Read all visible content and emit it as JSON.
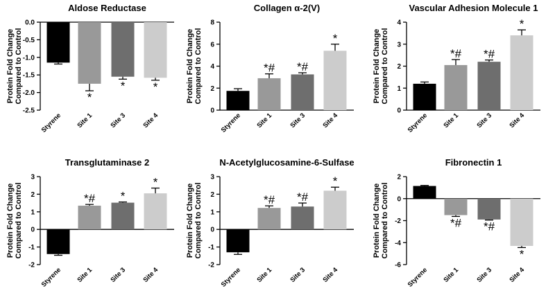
{
  "figure": {
    "background": "#ffffff"
  },
  "bar_colors": [
    "#000000",
    "#999999",
    "#6e6e6e",
    "#cccccc"
  ],
  "chart_data": [
    {
      "type": "bar",
      "title": "Aldose Reductase",
      "ylabel": "Protein Fold Change Compared to Control",
      "categories": [
        "Styrene",
        "Site 1",
        "Site 3",
        "Site 4"
      ],
      "values": [
        -1.15,
        -1.75,
        -1.55,
        -1.58
      ],
      "errors": [
        0.04,
        0.2,
        0.07,
        0.07
      ],
      "annotations": [
        "",
        "*",
        "*",
        "*"
      ],
      "ylim": [
        -2.5,
        0.0
      ],
      "yticks": [
        0.0,
        -0.5,
        -1.0,
        -1.5,
        -2.0,
        -2.5
      ],
      "ytick_labels": [
        "0.0",
        "-0.5",
        "-1.0",
        "-1.5",
        "-2.0",
        "-2.5"
      ]
    },
    {
      "type": "bar",
      "title": "Collagen α-2(V)",
      "ylabel": "Protein Fold Change Compared to Control",
      "categories": [
        "Styrene",
        "Site 1",
        "Site 3",
        "Site 4"
      ],
      "values": [
        1.75,
        2.9,
        3.25,
        5.4
      ],
      "errors": [
        0.2,
        0.4,
        0.15,
        0.6
      ],
      "annotations": [
        "",
        "*#",
        "*#",
        "*"
      ],
      "ylim": [
        0,
        8
      ],
      "yticks": [
        0,
        2,
        4,
        6,
        8
      ],
      "ytick_labels": [
        "0",
        "2",
        "4",
        "6",
        "8"
      ]
    },
    {
      "type": "bar",
      "title": "Vascular Adhesion Molecule 1",
      "ylabel": "Protein Fold Change Compared to Control",
      "categories": [
        "Styrene",
        "Site 1",
        "Site 3",
        "Site 4"
      ],
      "values": [
        1.2,
        2.05,
        2.2,
        3.4
      ],
      "errors": [
        0.08,
        0.25,
        0.08,
        0.25
      ],
      "annotations": [
        "",
        "*#",
        "*#",
        "*"
      ],
      "ylim": [
        0,
        4
      ],
      "yticks": [
        0,
        1,
        2,
        3,
        4
      ],
      "ytick_labels": [
        "0",
        "1",
        "2",
        "3",
        "4"
      ]
    },
    {
      "type": "bar",
      "title": "Transglutaminase 2",
      "ylabel": "Protein Fold Change Compared to Control",
      "categories": [
        "Styrene",
        "Site 1",
        "Site 3",
        "Site 4"
      ],
      "values": [
        -1.4,
        1.35,
        1.52,
        2.05
      ],
      "errors": [
        0.07,
        0.07,
        0.04,
        0.3
      ],
      "annotations": [
        "",
        "*#",
        "*",
        "*"
      ],
      "ylim": [
        -2,
        3
      ],
      "yticks": [
        -2,
        -1,
        0,
        1,
        2,
        3
      ],
      "ytick_labels": [
        "-2",
        "-1",
        "0",
        "1",
        "2",
        "3"
      ]
    },
    {
      "type": "bar",
      "title": "N-Acetylglucosamine-6-Sulfase",
      "ylabel": "Protein Fold Change Compared to Control",
      "categories": [
        "Styrene",
        "Site 1",
        "Site 3",
        "Site 4"
      ],
      "values": [
        -1.3,
        1.22,
        1.3,
        2.2
      ],
      "errors": [
        0.12,
        0.12,
        0.2,
        0.2
      ],
      "annotations": [
        "",
        "*#",
        "*#",
        "*"
      ],
      "ylim": [
        -2,
        3
      ],
      "yticks": [
        -2,
        -1,
        0,
        1,
        2,
        3
      ],
      "ytick_labels": [
        "-2",
        "-1",
        "0",
        "1",
        "2",
        "3"
      ]
    },
    {
      "type": "bar",
      "title": "Fibronectin 1",
      "ylabel": "Protein Fold Change Compared to Control",
      "categories": [
        "Styrene",
        "Site 1",
        "Site 3",
        "Site 4"
      ],
      "values": [
        1.15,
        -1.5,
        -1.9,
        -4.3
      ],
      "errors": [
        0.05,
        0.12,
        0.05,
        0.15
      ],
      "annotations": [
        "",
        "*#",
        "*#",
        "*"
      ],
      "ylim": [
        -6,
        2
      ],
      "yticks": [
        -6,
        -4,
        -2,
        0,
        2
      ],
      "ytick_labels": [
        "-6",
        "-4",
        "-2",
        "0",
        "2"
      ]
    }
  ]
}
